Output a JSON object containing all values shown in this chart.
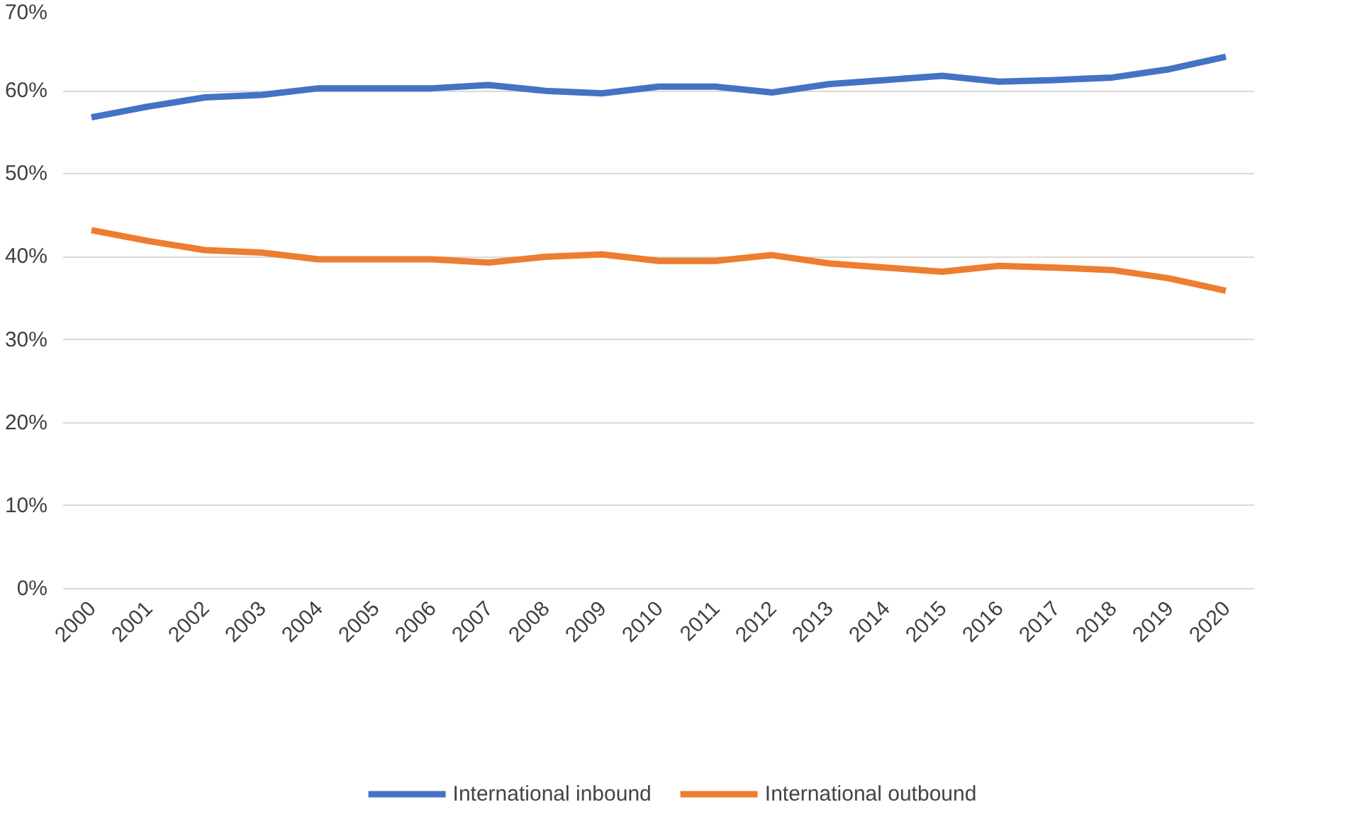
{
  "chart_data": {
    "type": "line",
    "categories": [
      "2000",
      "2001",
      "2002",
      "2003",
      "2004",
      "2005",
      "2006",
      "2007",
      "2008",
      "2009",
      "2010",
      "2011",
      "2012",
      "2013",
      "2014",
      "2015",
      "2016",
      "2017",
      "2018",
      "2019",
      "2020"
    ],
    "series": [
      {
        "name": "International inbound",
        "color": "#4472c4",
        "values": [
          56.8,
          58.1,
          59.2,
          59.5,
          60.3,
          60.3,
          60.3,
          60.7,
          60.0,
          59.7,
          60.5,
          60.5,
          59.8,
          60.8,
          61.3,
          61.8,
          61.1,
          61.3,
          61.6,
          62.6,
          64.1
        ]
      },
      {
        "name": "International outbound",
        "color": "#ed7d31",
        "values": [
          43.2,
          41.9,
          40.8,
          40.5,
          39.7,
          39.7,
          39.7,
          39.3,
          40.0,
          40.3,
          39.5,
          39.5,
          40.2,
          39.2,
          38.7,
          38.2,
          38.9,
          38.7,
          38.4,
          37.4,
          35.9
        ]
      }
    ],
    "ylim": [
      0,
      70
    ],
    "yticks": [
      {
        "value": 0,
        "label": "0%"
      },
      {
        "value": 10,
        "label": "10%"
      },
      {
        "value": 20,
        "label": "20%"
      },
      {
        "value": 30,
        "label": "30%"
      },
      {
        "value": 40,
        "label": "40%"
      },
      {
        "value": 50,
        "label": "50%"
      },
      {
        "value": 60,
        "label": "60%"
      },
      {
        "value": 70,
        "label": "70%"
      }
    ],
    "grid": "y",
    "legend": "bottom",
    "marker": "none",
    "line_style": "solid"
  }
}
